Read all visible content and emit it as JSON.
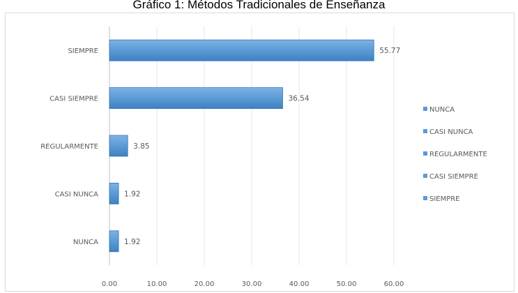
{
  "chart_data": {
    "type": "bar",
    "orientation": "horizontal",
    "title": "Gráfico 1: Métodos Tradicionales de Enseñanza",
    "categories": [
      "NUNCA",
      "CASI NUNCA",
      "REGULARMENTE",
      "CASI SIEMPRE",
      "SIEMPRE"
    ],
    "values": [
      1.92,
      1.92,
      3.85,
      36.54,
      55.77
    ],
    "value_labels": [
      "1.92",
      "1.92",
      "3.85",
      "36.54",
      "55.77"
    ],
    "xlim": [
      0,
      60
    ],
    "xticks": [
      "0.00",
      "10.00",
      "20.00",
      "30.00",
      "40.00",
      "50.00",
      "60.00"
    ],
    "legend": {
      "position": "right",
      "items": [
        "NUNCA",
        "CASI NUNCA",
        "REGULARMENTE",
        "CASI SIEMPRE",
        "SIEMPRE"
      ]
    },
    "grid": true,
    "bar_color": "#5b9bd5",
    "bar_edge_color": "#2e75b6"
  }
}
